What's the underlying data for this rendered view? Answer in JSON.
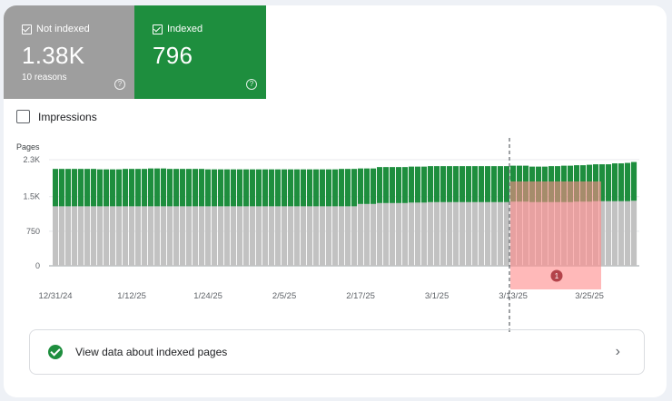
{
  "tiles": {
    "not_indexed": {
      "label": "Not indexed",
      "value": "1.38K",
      "sub": "10 reasons",
      "checked": true
    },
    "indexed": {
      "label": "Indexed",
      "value": "796",
      "checked": true
    }
  },
  "impressions": {
    "label": "Impressions",
    "checked": false
  },
  "colors": {
    "indexed": "#1e8e3e",
    "not_indexed": "#c2c2c2",
    "highlight": "#ff8a8a"
  },
  "chart_data": {
    "type": "bar",
    "stacked": true,
    "ylabel": "Pages",
    "ylim": [
      0,
      2300
    ],
    "yticks": [
      "0",
      "750",
      "1.5K",
      "2.3K"
    ],
    "ytick_values": [
      0,
      750,
      1500,
      2300
    ],
    "xticks": [
      "12/31/24",
      "1/12/25",
      "1/24/25",
      "2/5/25",
      "2/17/25",
      "3/1/25",
      "3/13/25",
      "3/25/25"
    ],
    "xtick_bar_index": [
      0,
      12,
      24,
      36,
      48,
      60,
      72,
      84
    ],
    "annotation": {
      "label": "1",
      "bar_index": 72
    },
    "series": [
      {
        "name": "Not indexed",
        "values": [
          1290,
          1290,
          1290,
          1290,
          1290,
          1290,
          1290,
          1290,
          1290,
          1290,
          1290,
          1290,
          1290,
          1290,
          1290,
          1290,
          1290,
          1290,
          1290,
          1290,
          1290,
          1290,
          1290,
          1290,
          1290,
          1290,
          1290,
          1290,
          1290,
          1290,
          1290,
          1290,
          1290,
          1290,
          1290,
          1290,
          1290,
          1290,
          1290,
          1290,
          1290,
          1290,
          1290,
          1290,
          1290,
          1290,
          1290,
          1290,
          1340,
          1340,
          1340,
          1360,
          1360,
          1360,
          1360,
          1360,
          1370,
          1370,
          1370,
          1380,
          1380,
          1380,
          1380,
          1380,
          1380,
          1380,
          1380,
          1380,
          1380,
          1380,
          1380,
          1380,
          1390,
          1390,
          1390,
          1380,
          1380,
          1380,
          1380,
          1380,
          1380,
          1380,
          1390,
          1390,
          1390,
          1400,
          1400,
          1400,
          1400,
          1400,
          1400,
          1410
        ]
      },
      {
        "name": "Indexed",
        "values": [
          810,
          810,
          810,
          810,
          810,
          810,
          810,
          800,
          800,
          800,
          800,
          810,
          810,
          810,
          810,
          820,
          820,
          820,
          810,
          810,
          810,
          810,
          810,
          810,
          800,
          800,
          800,
          800,
          800,
          800,
          800,
          800,
          800,
          800,
          800,
          800,
          800,
          800,
          800,
          800,
          800,
          800,
          800,
          800,
          800,
          810,
          810,
          810,
          770,
          770,
          770,
          780,
          780,
          780,
          780,
          780,
          780,
          780,
          780,
          780,
          780,
          780,
          780,
          780,
          780,
          780,
          780,
          780,
          780,
          780,
          780,
          780,
          780,
          780,
          780,
          770,
          770,
          770,
          780,
          780,
          790,
          790,
          790,
          790,
          800,
          800,
          800,
          800,
          820,
          820,
          830,
          840
        ]
      }
    ]
  },
  "link": {
    "label": "View data about indexed pages"
  }
}
